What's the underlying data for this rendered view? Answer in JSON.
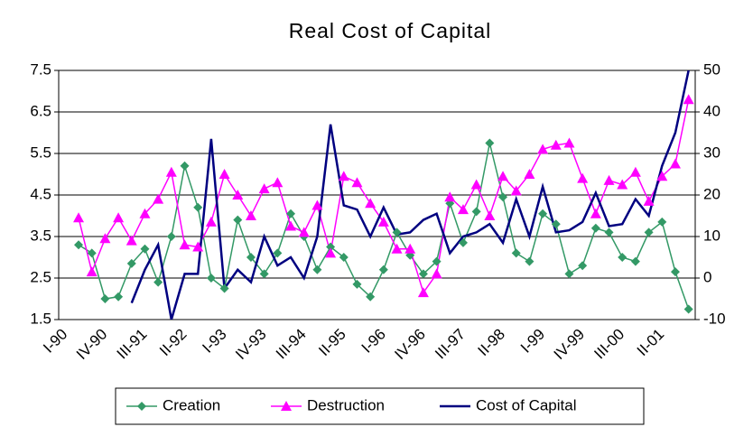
{
  "chart_data": {
    "type": "line",
    "title": "Real Cost of Capital",
    "categories": [
      "I-90",
      null,
      null,
      "IV-90",
      null,
      null,
      "III-91",
      null,
      null,
      "II-92",
      null,
      null,
      "I-93",
      null,
      null,
      "IV-93",
      null,
      null,
      "III-94",
      null,
      null,
      "II-95",
      null,
      null,
      "I-96",
      null,
      null,
      "IV-96",
      null,
      null,
      "III-97",
      null,
      null,
      "II-98",
      null,
      null,
      "I-99",
      null,
      null,
      "IV-99",
      null,
      null,
      "III-00",
      null,
      null,
      "II-01",
      null,
      null
    ],
    "series": [
      {
        "name": "Creation",
        "color": "#339966",
        "marker": "diamond",
        "values": [
          null,
          3.3,
          3.1,
          2.0,
          2.05,
          2.85,
          3.2,
          2.4,
          3.5,
          5.2,
          4.2,
          2.5,
          2.25,
          3.9,
          3.0,
          2.6,
          3.1,
          4.05,
          3.5,
          2.7,
          3.25,
          3.0,
          2.35,
          2.05,
          2.7,
          3.6,
          3.05,
          2.6,
          2.9,
          4.3,
          3.35,
          4.1,
          5.75,
          4.45,
          3.1,
          2.9,
          4.05,
          3.8,
          2.6,
          2.8,
          3.7,
          3.6,
          3.0,
          2.9,
          3.6,
          3.85,
          2.65,
          1.75
        ]
      },
      {
        "name": "Destruction",
        "color": "#ff00ff",
        "marker": "triangle",
        "values": [
          null,
          3.95,
          2.65,
          3.45,
          3.95,
          3.4,
          4.05,
          4.4,
          5.05,
          3.3,
          3.25,
          3.85,
          5.0,
          4.5,
          4.0,
          4.65,
          4.8,
          3.75,
          3.6,
          4.25,
          3.1,
          4.95,
          4.8,
          4.3,
          3.85,
          3.2,
          3.2,
          2.15,
          2.6,
          4.45,
          4.15,
          4.75,
          4.0,
          4.95,
          4.6,
          5.0,
          5.6,
          5.7,
          5.75,
          4.9,
          4.05,
          4.85,
          4.75,
          5.05,
          4.35,
          4.95,
          5.25,
          6.8
        ]
      },
      {
        "name": "Cost of Capital",
        "color": "#000080",
        "marker": "none",
        "axis": "y2",
        "values": [
          null,
          null,
          null,
          null,
          null,
          -6,
          2,
          8,
          -10,
          1,
          1,
          33.5,
          -2.5,
          2,
          -1,
          10,
          3,
          5,
          0,
          10,
          37,
          17.5,
          16.5,
          10,
          17,
          10.5,
          11,
          14,
          15.5,
          6,
          10,
          11,
          13,
          8.5,
          19,
          10,
          22,
          11,
          11.5,
          13.5,
          20.5,
          12.5,
          13,
          19,
          15,
          27,
          35,
          50
        ]
      }
    ],
    "ylim": [
      1.5,
      7.5
    ],
    "yticks": [
      1.5,
      2.5,
      3.5,
      4.5,
      5.5,
      6.5,
      7.5
    ],
    "y2lim": [
      -10,
      50
    ],
    "y2ticks": [
      -10,
      0,
      10,
      20,
      30,
      40,
      50
    ],
    "grid": true,
    "legend": "bottom"
  }
}
